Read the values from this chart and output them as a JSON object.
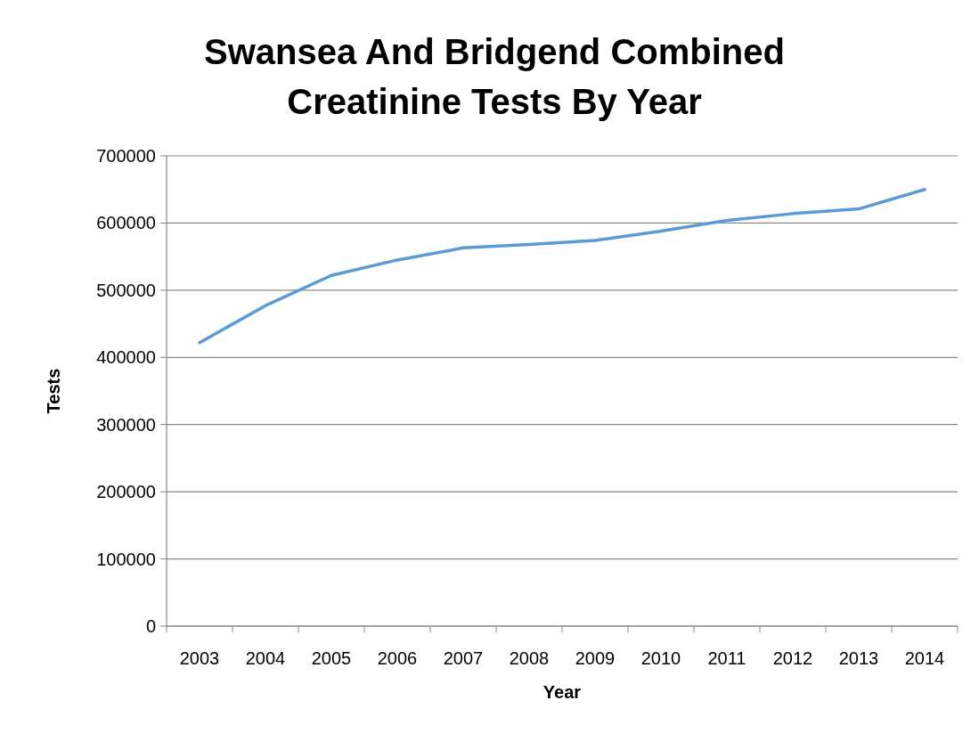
{
  "chart_data": {
    "type": "line",
    "title": "Swansea And Bridgend Combined Creatinine Tests By Year",
    "xlabel": "Year",
    "ylabel": "Tests",
    "categories": [
      "2003",
      "2004",
      "2005",
      "2006",
      "2007",
      "2008",
      "2009",
      "2010",
      "2011",
      "2012",
      "2013",
      "2014"
    ],
    "series": [
      {
        "color": "#5b9bd5",
        "values": [
          422000,
          477000,
          522000,
          545000,
          563000,
          568000,
          574000,
          588000,
          604000,
          614000,
          621000,
          650000
        ]
      }
    ],
    "ylim": [
      0,
      700000
    ],
    "yticks": [
      0,
      100000,
      200000,
      300000,
      400000,
      500000,
      600000,
      700000
    ],
    "grid": "y",
    "marker": "none",
    "line_style": "solid"
  }
}
